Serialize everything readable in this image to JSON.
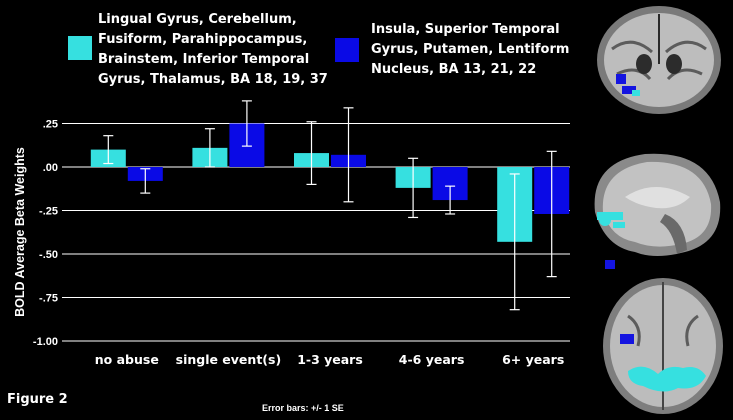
{
  "figure_label": "Figure 2",
  "error_note": "Error bars: +/- 1 SE",
  "colors": {
    "series1": "#36e0e0",
    "series2": "#0a0ae6",
    "background": "#000000",
    "grid": "#ffffff"
  },
  "chart_data": {
    "type": "bar",
    "categories": [
      "no abuse",
      "single event(s)",
      "1-3 years",
      "4-6 years",
      "6+ years"
    ],
    "ylabel": "BOLD Average Beta Weights",
    "ylim": [
      -1.0,
      0.3
    ],
    "yticks": [
      ".25",
      ".00",
      "-.25",
      "-.50",
      "-.75",
      "-1.00"
    ],
    "ytick_values": [
      0.25,
      0.0,
      -0.25,
      -0.5,
      -0.75,
      -1.0
    ],
    "grid": true,
    "series": [
      {
        "name_lines": [
          "Lingual Gyrus, Cerebellum,",
          "Fusiform, Parahippocampus,",
          "Brainstem, Inferior Temporal",
          "Gyrus, Thalamus, BA 18, 19, 37"
        ],
        "values": [
          0.1,
          0.11,
          0.08,
          -0.12,
          -0.43
        ],
        "error": [
          0.08,
          0.11,
          0.18,
          0.17,
          0.39
        ]
      },
      {
        "name_lines": [
          "Insula, Superior Temporal",
          "Gyrus, Putamen, Lentiform",
          "Nucleus, BA 13, 21, 22"
        ],
        "values": [
          -0.08,
          0.25,
          0.07,
          -0.19,
          -0.27
        ],
        "error": [
          0.07,
          0.13,
          0.27,
          0.08,
          0.36
        ]
      }
    ]
  },
  "brain_images": [
    "coronal-brain-slice",
    "sagittal-brain-slice",
    "axial-brain-slice"
  ]
}
